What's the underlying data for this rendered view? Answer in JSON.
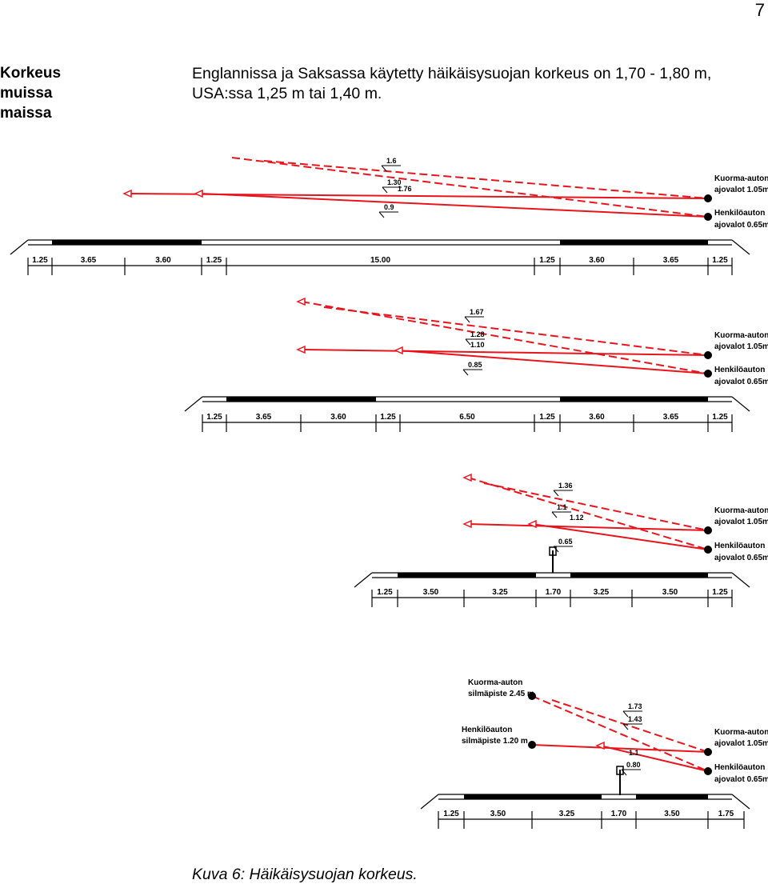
{
  "page": {
    "number": "7"
  },
  "side_heading": {
    "line1": "Korkeus",
    "line2": "muissa",
    "line3": "maissa"
  },
  "body": {
    "paragraph": "Englannissa ja Saksassa käytetty häikäisysuojan korkeus on 1,70 - 1,80 m, USA:ssa 1,25 m tai 1,40 m."
  },
  "figures": [
    {
      "dimensions": [
        "1.25",
        "3.65",
        "3.60",
        "1.25",
        "15.00",
        "1.25",
        "3.60",
        "3.65",
        "1.25"
      ],
      "heights": [
        "1.6",
        "1.30",
        "1.76",
        "0.9"
      ],
      "label_truck": [
        "Kuorma-auton",
        "ajovalot 1.05m"
      ],
      "label_car": [
        "Henkilöauton",
        "ajovalot 0.65m"
      ]
    },
    {
      "dimensions": [
        "1.25",
        "3.65",
        "3.60",
        "1.25",
        "6.50",
        "1.25",
        "3.60",
        "3.65",
        "1.25"
      ],
      "heights": [
        "1.67",
        "1.28",
        "1.10",
        "0.85"
      ],
      "label_truck": [
        "Kuorma-auton",
        "ajovalot 1.05m"
      ],
      "label_car": [
        "Henkilöauton",
        "ajovalot 0.65m"
      ]
    },
    {
      "dimensions": [
        "1.25",
        "3.50",
        "3.25",
        "1.70",
        "3.25",
        "3.50",
        "1.25"
      ],
      "heights": [
        "1.36",
        "1.1",
        "1.12",
        "0.65"
      ],
      "label_truck": [
        "Kuorma-auton",
        "ajovalot 1.05m"
      ],
      "label_car": [
        "Henkilöauton",
        "ajovalot 0.65m"
      ]
    },
    {
      "dimensions": [
        "1.25",
        "3.50",
        "3.25",
        "1.70",
        "3.50",
        "1.75"
      ],
      "heights": [
        "1.73",
        "1.43",
        "1.1",
        "0.80"
      ],
      "label_truck": [
        "Kuorma-auton",
        "ajovalot 1.05m"
      ],
      "label_car": [
        "Henkilöauton",
        "ajovalot 0.65m"
      ],
      "label_truck_eye": [
        "Kuorma-auton",
        "silmäpiste 2.45 m"
      ],
      "label_car_eye": [
        "Henkilöauton",
        "silmäpiste 1.20 m"
      ]
    }
  ],
  "caption": "Kuva 6: Häikäisysuojan korkeus.",
  "colors": {
    "beam": "#e8141c",
    "road": "#000000",
    "text": "#000000"
  }
}
